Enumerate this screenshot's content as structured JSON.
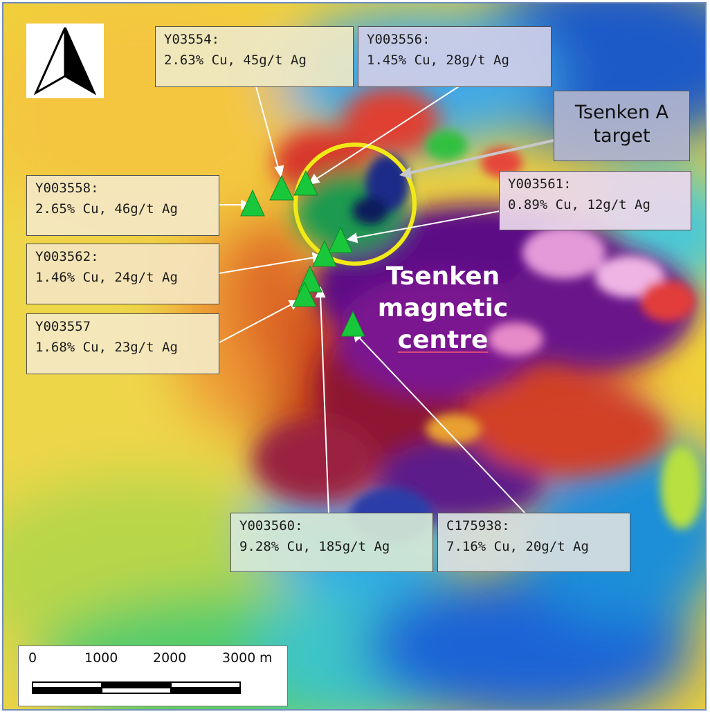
{
  "colors": {
    "frame": "#6f8cbd",
    "marker": "#19c83a",
    "target_ring": "#f2ea16",
    "leader": "#ffffff",
    "target_leader": "#c8c8c8"
  },
  "icons": {
    "north_arrow": "north-arrow-icon",
    "sample_marker": "green-triangle-marker"
  },
  "target": {
    "line1": "Tsenken A",
    "line2": "target"
  },
  "centre": {
    "line1": "Tsenken",
    "line2": "magnetic",
    "line3": "centre"
  },
  "scale": {
    "ticks": [
      "0",
      "1000",
      "2000",
      "3000"
    ],
    "unit": "m"
  },
  "samples": [
    {
      "id": "Y03554:",
      "grade": "2.63% Cu, 45g/t Ag"
    },
    {
      "id": "Y003556:",
      "grade": "1.45% Cu, 28g/t Ag"
    },
    {
      "id": "Y003558:",
      "grade": "2.65% Cu, 46g/t Ag"
    },
    {
      "id": "Y003561:",
      "grade": "0.89% Cu, 12g/t Ag"
    },
    {
      "id": "Y003562:",
      "grade": "1.46% Cu, 24g/t Ag"
    },
    {
      "id": "Y003557",
      "grade": "1.68% Cu, 23g/t Ag"
    },
    {
      "id": "Y003560:",
      "grade": "9.28% Cu, 185g/t Ag"
    },
    {
      "id": "C175938:",
      "grade": "7.16% Cu, 20g/t Ag"
    }
  ]
}
